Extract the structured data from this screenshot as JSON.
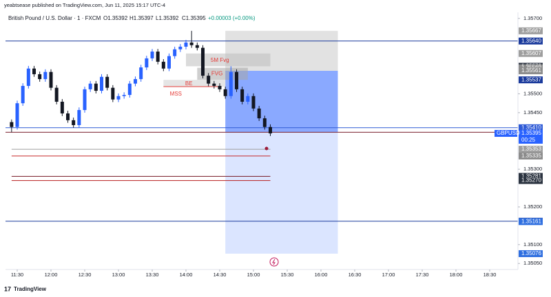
{
  "chart_data": {
    "type": "candlestick",
    "published": "yeabtsease published on TradingView.com, Jun 11, 2025 15:17 UTC-4",
    "title": "British Pound / U.S. Dollar · 1 · FXCM",
    "ohlc_legend": [
      "O1.35392",
      "H1.35397",
      "L1.35392",
      "C1.35395",
      "+0.00003 (+0.00%)"
    ],
    "footer": "TradingView",
    "colors": {
      "up": "#2962ff",
      "down": "#131722"
    },
    "x": [
      "11:25",
      "11:30",
      "11:35",
      "11:40",
      "11:45",
      "11:50",
      "11:55",
      "12:00",
      "12:05",
      "12:10",
      "12:15",
      "12:20",
      "12:25",
      "12:30",
      "12:35",
      "12:40",
      "12:45",
      "12:50",
      "12:55",
      "13:00",
      "13:05",
      "13:10",
      "13:15",
      "13:20",
      "13:25",
      "13:30",
      "13:35",
      "13:40",
      "13:45",
      "13:50",
      "13:55",
      "14:00",
      "14:05",
      "14:10",
      "14:15",
      "14:20",
      "14:25",
      "14:30",
      "14:35",
      "14:40",
      "14:45",
      "14:50",
      "14:55",
      "15:00",
      "15:05",
      "15:10",
      "15:15"
    ],
    "open": [
      1.35425,
      1.35412,
      1.35475,
      1.35521,
      1.35567,
      1.35552,
      1.35539,
      1.35558,
      1.35516,
      1.35479,
      1.35448,
      1.3543,
      1.35417,
      1.35457,
      1.35512,
      1.35527,
      1.35508,
      1.35545,
      1.35516,
      1.35485,
      1.35494,
      1.35497,
      1.35527,
      1.35539,
      1.3557,
      1.35594,
      1.35612,
      1.35585,
      1.35567,
      1.356,
      1.35618,
      1.35625,
      1.35636,
      1.35629,
      1.35622,
      1.35548,
      1.35527,
      1.35521,
      1.35512,
      1.35494,
      1.35558,
      1.35512,
      1.35479,
      1.35494,
      1.35461,
      1.35435,
      1.35412
    ],
    "high": [
      1.35432,
      1.35482,
      1.35528,
      1.35574,
      1.35574,
      1.35559,
      1.35565,
      1.35565,
      1.35523,
      1.35486,
      1.35455,
      1.35437,
      1.35464,
      1.35519,
      1.35534,
      1.35534,
      1.35552,
      1.35552,
      1.35523,
      1.35501,
      1.35504,
      1.35534,
      1.35546,
      1.35577,
      1.35601,
      1.35619,
      1.35619,
      1.35592,
      1.35607,
      1.35625,
      1.35632,
      1.35643,
      1.35667,
      1.35636,
      1.35629,
      1.35555,
      1.35534,
      1.35528,
      1.35519,
      1.35573,
      1.35565,
      1.35519,
      1.35501,
      1.35501,
      1.35468,
      1.35442,
      1.35419
    ],
    "low": [
      1.35398,
      1.35405,
      1.35468,
      1.35514,
      1.35545,
      1.35532,
      1.35532,
      1.35509,
      1.35472,
      1.35441,
      1.35423,
      1.3541,
      1.3541,
      1.3545,
      1.35505,
      1.35501,
      1.35501,
      1.35509,
      1.35478,
      1.35478,
      1.35487,
      1.3549,
      1.3552,
      1.35532,
      1.35563,
      1.35587,
      1.35578,
      1.3556,
      1.3556,
      1.35593,
      1.35611,
      1.35618,
      1.35622,
      1.35615,
      1.35541,
      1.3552,
      1.35514,
      1.35505,
      1.35487,
      1.35487,
      1.35505,
      1.35472,
      1.35472,
      1.35454,
      1.35428,
      1.35405,
      1.35388
    ],
    "close": [
      1.35412,
      1.35475,
      1.35521,
      1.35567,
      1.35552,
      1.35539,
      1.35558,
      1.35516,
      1.35479,
      1.35448,
      1.3543,
      1.35417,
      1.35457,
      1.35512,
      1.35527,
      1.35508,
      1.35545,
      1.35516,
      1.35485,
      1.35494,
      1.35497,
      1.35527,
      1.35539,
      1.3557,
      1.35594,
      1.35612,
      1.35585,
      1.35567,
      1.356,
      1.35618,
      1.35625,
      1.35636,
      1.35629,
      1.35622,
      1.35548,
      1.35527,
      1.35521,
      1.35512,
      1.35494,
      1.35558,
      1.35512,
      1.35479,
      1.35494,
      1.35461,
      1.35435,
      1.35412,
      1.35395
    ],
    "xticks": [
      "11:30",
      "12:00",
      "12:30",
      "13:00",
      "13:30",
      "14:00",
      "14:30",
      "15:00",
      "15:30",
      "16:00",
      "16:30",
      "17:00",
      "17:30",
      "18:00",
      "18:30"
    ],
    "ylim": [
      1.35034,
      1.35716
    ],
    "yticks": [
      {
        "value": 1.357,
        "label": "1.35700"
      },
      {
        "value": 1.355,
        "label": "1.35500"
      },
      {
        "value": 1.3545,
        "label": "1.35450"
      },
      {
        "value": 1.353,
        "label": "1.35300"
      },
      {
        "value": 1.352,
        "label": "1.35200"
      },
      {
        "value": 1.351,
        "label": "1.35100"
      },
      {
        "value": 1.3505,
        "label": "1.35050"
      }
    ],
    "position": {
      "x": [
        "14:35",
        "16:15"
      ],
      "stop": 1.35667,
      "entry": 1.35561,
      "current": 1.35398,
      "target": 1.35076
    },
    "zones": [
      {
        "x": [
          "14:00",
          "15:15"
        ],
        "y": [
          1.35607,
          1.35573
        ],
        "color": "#bdbdbd",
        "label": "5M Fvg"
      },
      {
        "x": [
          "14:10",
          "14:55"
        ],
        "y": [
          1.35569,
          1.35537
        ],
        "color": "#a8a8a8",
        "label": "FVG"
      },
      {
        "x": [
          "13:40",
          "14:35"
        ],
        "y": [
          1.35537,
          1.35519
        ],
        "color": "#d0d0d0",
        "label": "BE"
      }
    ],
    "lines": [
      {
        "price": 1.3564,
        "color": "#1a3a9c"
      },
      {
        "price": 1.3541,
        "color": "#2f5bd6"
      },
      {
        "price": 1.35398,
        "color": "#7a1f2b"
      },
      {
        "price": 1.35162,
        "color": "#1a3a9c"
      },
      {
        "price": 1.35519,
        "color": "#e53935",
        "x": [
          "13:40",
          "14:30"
        ],
        "label": "MSS"
      },
      {
        "price": 1.35353,
        "color": "#9e9e9e",
        "x": [
          "11:25",
          "15:15"
        ]
      },
      {
        "price": 1.35335,
        "color": "#c62828",
        "x": [
          "11:25",
          "15:15"
        ]
      },
      {
        "price": 1.35281,
        "color": "#7a1f2b",
        "x": [
          "11:25",
          "15:15"
        ]
      },
      {
        "price": 1.3527,
        "color": "#b71c1c",
        "x": [
          "11:25",
          "15:15"
        ]
      }
    ],
    "price_labels": [
      {
        "value": 1.35667,
        "label": "1.35667",
        "color": "#9e9e9e"
      },
      {
        "value": 1.3564,
        "label": "1.35640",
        "color": "#1a3a9c"
      },
      {
        "value": 1.35607,
        "label": "1.35607",
        "color": "#9e9e9e"
      },
      {
        "value": 1.35573,
        "label": "1.35573",
        "color": "#2b3340"
      },
      {
        "value": 1.35569,
        "label": "1.35569",
        "color": "#8c8c8c"
      },
      {
        "value": 1.35561,
        "label": "1.35561",
        "color": "#8c8c8c"
      },
      {
        "value": 1.35537,
        "label": "1.35537",
        "color": "#1a3a9c"
      },
      {
        "value": 1.3541,
        "label": "1.35410",
        "color": "#2f5bd6"
      },
      {
        "value": 1.35398,
        "label": "1.35398",
        "color": "#2f5bd6"
      },
      {
        "value": 1.35395,
        "label": "1.35395",
        "color": "#2962ff",
        "extra": "00:25",
        "tag": "GBPUSD"
      },
      {
        "value": 1.35353,
        "label": "1.35353",
        "color": "#9e9e9e"
      },
      {
        "value": 1.35335,
        "label": "1.35335",
        "color": "#8c8c8c"
      },
      {
        "value": 1.35281,
        "label": "1.35281",
        "color": "#2b3340"
      },
      {
        "value": 1.3527,
        "label": "1.35270",
        "color": "#2b3340"
      },
      {
        "value": 1.35162,
        "label": "1.35162",
        "color": "#1a3a9c"
      },
      {
        "value": 1.35161,
        "label": "1.35161",
        "color": "#2f6fe0"
      },
      {
        "value": 1.35076,
        "label": "1.35076",
        "color": "#2f6fe0"
      }
    ]
  }
}
